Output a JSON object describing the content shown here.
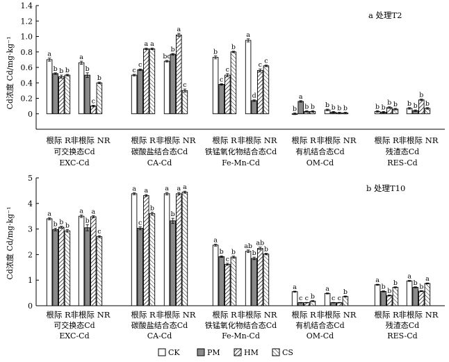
{
  "legend": {
    "items": [
      {
        "key": "CK",
        "label": "CK",
        "fill": "white"
      },
      {
        "key": "PM",
        "label": "PM",
        "fill": "gray"
      },
      {
        "key": "HM",
        "label": "HM",
        "fill": "hatch"
      },
      {
        "key": "CS",
        "label": "CS",
        "fill": "crosshatch"
      }
    ]
  },
  "colors": {
    "gray_fill": "#8a8a8a",
    "stroke": "#000000"
  },
  "chart_data": [
    {
      "type": "bar",
      "title": "a 处理T2",
      "ylabel": "Cd浓度 Cd/mg·kg⁻¹",
      "ylim": [
        -0.2,
        1.4
      ],
      "yticks": [
        "0",
        "0.2",
        "0.4",
        "0.6",
        "0.8",
        "1.0",
        "1.2",
        "1.4"
      ],
      "ytick_values": [
        0,
        0.2,
        0.4,
        0.6,
        0.8,
        1.0,
        1.2,
        1.4
      ],
      "grid": false,
      "fractions": [
        {
          "name": "可交换态Cd",
          "code": "EXC-Cd"
        },
        {
          "name": "碳酸盐结合态Cd",
          "code": "CA-Cd"
        },
        {
          "name": "铁锰氧化物结合态Cd",
          "code": "Fe-Mn-Cd"
        },
        {
          "name": "有机结合态Cd",
          "code": "OM-Cd"
        },
        {
          "name": "残渣态Cd",
          "code": "RES-Cd"
        }
      ],
      "zones": [
        "根际 R",
        "非根际 NR"
      ],
      "series": [
        {
          "name": "CK",
          "values": [
            [
              0.7,
              0.66
            ],
            [
              0.5,
              0.68
            ],
            [
              0.73,
              0.95
            ],
            [
              0.0,
              0.05
            ],
            [
              0.03,
              0.07
            ]
          ],
          "errors": [
            [
              0.02,
              0.02
            ],
            [
              0.01,
              0.01
            ],
            [
              0.02,
              0.02
            ],
            [
              0.01,
              0.01
            ],
            [
              0.01,
              0.01
            ]
          ],
          "letters": [
            [
              "a",
              "a"
            ],
            [
              "c",
              "bc"
            ],
            [
              "b",
              "a"
            ],
            [
              "b",
              "b"
            ],
            [
              "b",
              "b"
            ]
          ]
        },
        {
          "name": "PM",
          "values": [
            [
              0.52,
              0.5
            ],
            [
              0.57,
              0.77
            ],
            [
              0.38,
              0.17
            ],
            [
              0.16,
              0.02
            ],
            [
              0.02,
              0.04
            ]
          ],
          "errors": [
            [
              0.01,
              0.03
            ],
            [
              0.01,
              0.01
            ],
            [
              0.01,
              0.01
            ],
            [
              0.01,
              0.01
            ],
            [
              0.01,
              0.01
            ]
          ],
          "letters": [
            [
              "b",
              "b"
            ],
            [
              "c",
              "b"
            ],
            [
              "c",
              "d"
            ],
            [
              "a",
              "b"
            ],
            [
              "b",
              "b"
            ]
          ]
        },
        {
          "name": "HM",
          "values": [
            [
              0.48,
              0.1
            ],
            [
              0.84,
              1.02
            ],
            [
              0.5,
              0.56
            ],
            [
              0.03,
              0.01
            ],
            [
              0.08,
              0.18
            ]
          ],
          "errors": [
            [
              0.02,
              0.01
            ],
            [
              0.01,
              0.02
            ],
            [
              0.02,
              0.02
            ],
            [
              0.01,
              0.01
            ],
            [
              0.01,
              0.01
            ]
          ],
          "letters": [
            [
              "b",
              "c"
            ],
            [
              "a",
              "a"
            ],
            [
              "c",
              "c"
            ],
            [
              "b",
              "b"
            ],
            [
              "b",
              "b"
            ]
          ]
        },
        {
          "name": "CS",
          "values": [
            [
              0.5,
              0.4
            ],
            [
              0.84,
              0.3
            ],
            [
              0.8,
              0.62
            ],
            [
              0.03,
              0.01
            ],
            [
              0.06,
              0.07
            ]
          ],
          "errors": [
            [
              0.01,
              0.01
            ],
            [
              0.01,
              0.02
            ],
            [
              0.01,
              0.01
            ],
            [
              0.01,
              0.01
            ],
            [
              0.01,
              0.01
            ]
          ],
          "letters": [
            [
              "b",
              "b"
            ],
            [
              "a",
              "c"
            ],
            [
              "b",
              "c"
            ],
            [
              "b",
              "b"
            ],
            [
              "b",
              "b"
            ]
          ]
        }
      ]
    },
    {
      "type": "bar",
      "title": "b 处理T10",
      "ylabel": "Cd浓度 Cd/mg·kg⁻¹",
      "ylim": [
        0,
        5
      ],
      "yticks": [
        "0",
        "1",
        "2",
        "3",
        "4",
        "5"
      ],
      "ytick_values": [
        0,
        1,
        2,
        3,
        4,
        5
      ],
      "grid": false,
      "fractions": [
        {
          "name": "可交换态Cd",
          "code": "EXC-Cd"
        },
        {
          "name": "碳酸盐结合态Cd",
          "code": "CA-Cd"
        },
        {
          "name": "铁锰氧化物结合态Cd",
          "code": "Fe-Mn-Cd"
        },
        {
          "name": "有机结合态Cd",
          "code": "OM-Cd"
        },
        {
          "name": "残渣态Cd",
          "code": "RES-Cd"
        }
      ],
      "zones": [
        "根际 R",
        "非根际 NR"
      ],
      "series": [
        {
          "name": "CK",
          "values": [
            [
              3.4,
              3.5
            ],
            [
              4.38,
              4.38
            ],
            [
              2.37,
              2.13
            ],
            [
              0.55,
              0.48
            ],
            [
              0.82,
              0.97
            ]
          ],
          "errors": [
            [
              0.04,
              0.05
            ],
            [
              0.04,
              0.05
            ],
            [
              0.04,
              0.05
            ],
            [
              0.02,
              0.02
            ],
            [
              0.02,
              0.02
            ]
          ],
          "letters": [
            [
              "a",
              "a"
            ],
            [
              "a",
              "a"
            ],
            [
              "a",
              "ab"
            ],
            [
              "a",
              "a"
            ],
            [
              "a",
              "a"
            ]
          ]
        },
        {
          "name": "PM",
          "values": [
            [
              2.98,
              3.05
            ],
            [
              3.03,
              3.32
            ],
            [
              1.92,
              1.85
            ],
            [
              0.12,
              0.12
            ],
            [
              0.56,
              0.72
            ]
          ],
          "errors": [
            [
              0.05,
              0.12
            ],
            [
              0.06,
              0.1
            ],
            [
              0.03,
              0.05
            ],
            [
              0.01,
              0.01
            ],
            [
              0.02,
              0.02
            ]
          ],
          "letters": [
            [
              "b",
              "b"
            ],
            [
              "c",
              "b"
            ],
            [
              "b",
              "b"
            ],
            [
              "c",
              "c"
            ],
            [
              "b",
              "b"
            ]
          ]
        },
        {
          "name": "HM",
          "values": [
            [
              3.07,
              3.48
            ],
            [
              4.31,
              4.38
            ],
            [
              1.62,
              2.24
            ],
            [
              0.12,
              0.12
            ],
            [
              0.4,
              0.57
            ]
          ],
          "errors": [
            [
              0.04,
              0.04
            ],
            [
              0.04,
              0.05
            ],
            [
              0.04,
              0.05
            ],
            [
              0.01,
              0.01
            ],
            [
              0.02,
              0.02
            ]
          ],
          "letters": [
            [
              "b",
              "a"
            ],
            [
              "a",
              "a"
            ],
            [
              "c",
              "ab"
            ],
            [
              "c",
              "c"
            ],
            [
              "b",
              "b"
            ]
          ]
        },
        {
          "name": "CS",
          "values": [
            [
              2.93,
              2.7
            ],
            [
              3.6,
              4.44
            ],
            [
              1.9,
              2.02
            ],
            [
              0.18,
              0.36
            ],
            [
              0.72,
              0.87
            ]
          ],
          "errors": [
            [
              0.05,
              0.04
            ],
            [
              0.06,
              0.04
            ],
            [
              0.04,
              0.03
            ],
            [
              0.02,
              0.02
            ],
            [
              0.02,
              0.02
            ]
          ],
          "letters": [
            [
              "b",
              "c"
            ],
            [
              "b",
              "a"
            ],
            [
              "b",
              "b"
            ],
            [
              "b",
              "b"
            ],
            [
              "b",
              "a"
            ]
          ]
        }
      ]
    }
  ]
}
